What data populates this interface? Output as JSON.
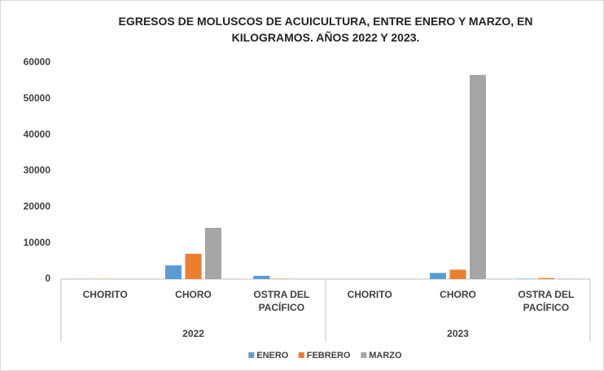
{
  "chart_data": {
    "type": "bar",
    "title": "EGRESOS DE MOLUSCOS DE ACUICULTURA, ENTRE ENERO Y MARZO, EN KILOGRAMOS. AÑOS 2022 Y 2023.",
    "groups": [
      {
        "name": "2022",
        "categories": [
          "CHORITO",
          "CHORO",
          "OSTRA DEL PACÍFICO"
        ]
      },
      {
        "name": "2023",
        "categories": [
          "CHORITO",
          "CHORO",
          "OSTRA DEL PACÍFICO"
        ]
      }
    ],
    "series": [
      {
        "name": "ENERO",
        "color": "#5b9bd5",
        "values": [
          50,
          3800,
          900,
          0,
          1700,
          100
        ]
      },
      {
        "name": "FEBRERO",
        "color": "#ed7d31",
        "values": [
          50,
          7000,
          100,
          0,
          2600,
          300
        ]
      },
      {
        "name": "MARZO",
        "color": "#a5a5a5",
        "values": [
          20,
          14200,
          30,
          0,
          56600,
          100
        ]
      }
    ],
    "ylim": [
      0,
      60000
    ],
    "yticks": [
      0,
      10000,
      20000,
      30000,
      40000,
      50000,
      60000
    ],
    "grid": false,
    "legend": "bottom"
  }
}
